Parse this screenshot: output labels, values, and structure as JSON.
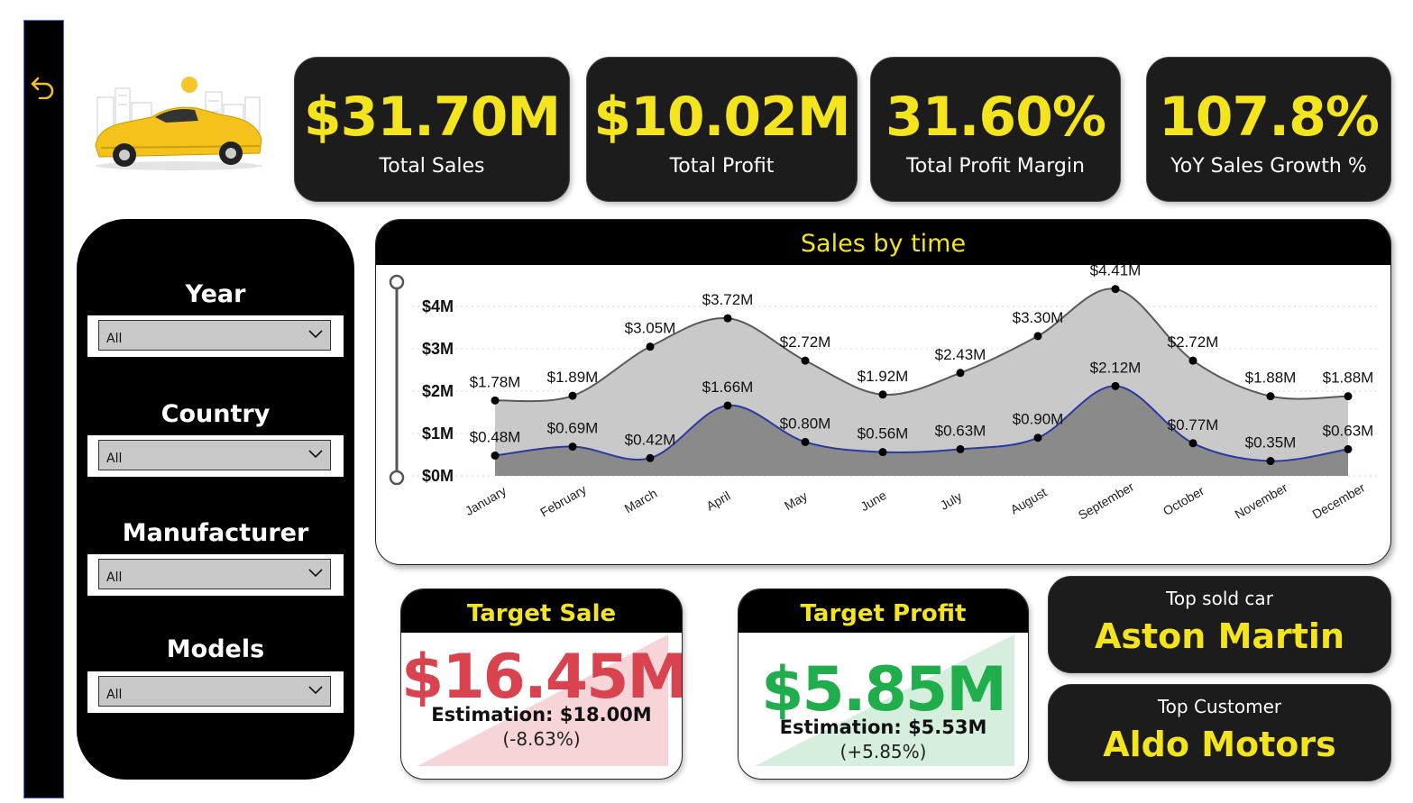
{
  "kpis": [
    {
      "value": "$31.70M",
      "label": "Total Sales"
    },
    {
      "value": "$10.02M",
      "label": "Total Profit"
    },
    {
      "value": "31.60%",
      "label": "Total Profit Margin"
    },
    {
      "value": "107.8%",
      "label": "YoY Sales Growth %"
    }
  ],
  "filters": [
    {
      "title": "Year",
      "value": "All"
    },
    {
      "title": "Country",
      "value": "All"
    },
    {
      "title": "Manufacturer",
      "value": "All"
    },
    {
      "title": "Models",
      "value": "All"
    }
  ],
  "chart_title": "Sales by time",
  "chart_data": {
    "type": "area",
    "categories": [
      "January",
      "February",
      "March",
      "April",
      "May",
      "June",
      "July",
      "August",
      "September",
      "October",
      "November",
      "December"
    ],
    "series": [
      {
        "values": [
          1.78,
          1.89,
          3.05,
          3.72,
          2.72,
          1.92,
          2.43,
          3.3,
          4.41,
          2.72,
          1.88,
          1.88
        ],
        "labels": [
          "$1.78M",
          "$1.89M",
          "$3.05M",
          "$3.72M",
          "$2.72M",
          "$1.92M",
          "$2.43M",
          "$3.30M",
          "$4.41M",
          "$2.72M",
          "$1.88M",
          "$1.88M"
        ],
        "fill": "#c9c9c9",
        "stroke": "#5a5a5a"
      },
      {
        "values": [
          0.48,
          0.69,
          0.42,
          1.66,
          0.8,
          0.56,
          0.63,
          0.9,
          2.12,
          0.77,
          0.35,
          0.63
        ],
        "labels": [
          "$0.48M",
          "$0.69M",
          "$0.42M",
          "$1.66M",
          "$0.80M",
          "$0.56M",
          "$0.63M",
          "$0.90M",
          "$2.12M",
          "$0.77M",
          "$0.35M",
          "$0.63M"
        ],
        "fill": "#8a8a8a",
        "stroke": "#2b3a9e"
      }
    ],
    "ylim": [
      0,
      4.41
    ],
    "yticks": [
      0,
      1,
      2,
      3,
      4
    ],
    "ytick_labels": [
      "$0M",
      "$1M",
      "$2M",
      "$3M",
      "$4M"
    ],
    "grid": true
  },
  "target_sale": {
    "title": "Target Sale",
    "value": "$16.45M",
    "estimation": "Estimation: $18.00M",
    "pct": "(-8.63%)",
    "color": "#d9434f",
    "status_icon": "!"
  },
  "target_profit": {
    "title": "Target Profit",
    "value": "$5.85M",
    "estimation": "Estimation: $5.53M",
    "pct": "(+5.85%)",
    "color": "#1fae4b",
    "status_icon": "✓"
  },
  "top_car": {
    "label": "Top sold car",
    "value": "Aston Martin"
  },
  "top_customer": {
    "label": "Top Customer",
    "value": "Aldo Motors"
  },
  "colors": {
    "accent": "#f3e41d",
    "panel": "#1c1c1c",
    "sidebar": "#000000"
  }
}
